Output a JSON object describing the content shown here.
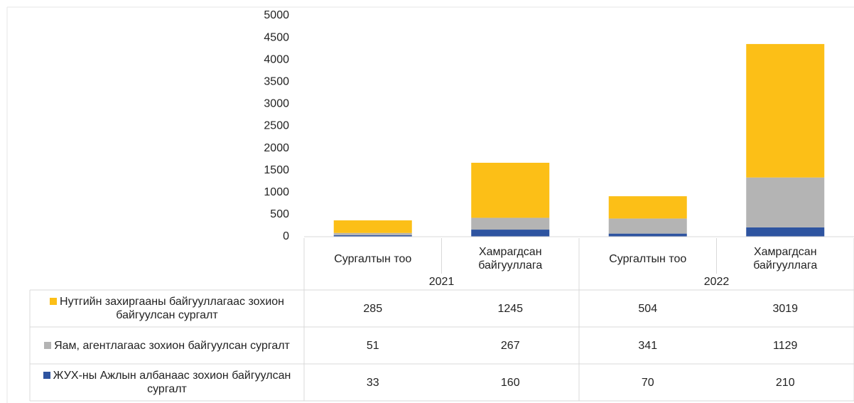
{
  "chart_data": {
    "type": "stacked_bar",
    "categories": [
      "Сургалтын тоо",
      "Хамрагдсан байгууллага",
      "Сургалтын тоо",
      "Хамрагдсан байгууллага"
    ],
    "category_groups": [
      "2021",
      "2022"
    ],
    "series": [
      {
        "name": "ЖУХ-ны Ажлын албанаас зохион байгуулсан сургалт",
        "color": "#2e54a0",
        "values": [
          33,
          160,
          70,
          210
        ]
      },
      {
        "name": "Яам, агентлагаас зохион байгуулсан сургалт",
        "color": "#b4b4b4",
        "values": [
          51,
          267,
          341,
          1129
        ]
      },
      {
        "name": "Нутгийн захиргааны байгууллагаас зохион байгуулсан сургалт",
        "color": "#fcbf17",
        "values": [
          285,
          1245,
          504,
          3019
        ]
      }
    ],
    "ylim": [
      0,
      5000
    ],
    "yticks": [
      0,
      500,
      1000,
      1500,
      2000,
      2500,
      3000,
      3500,
      4000,
      4500,
      5000
    ]
  }
}
